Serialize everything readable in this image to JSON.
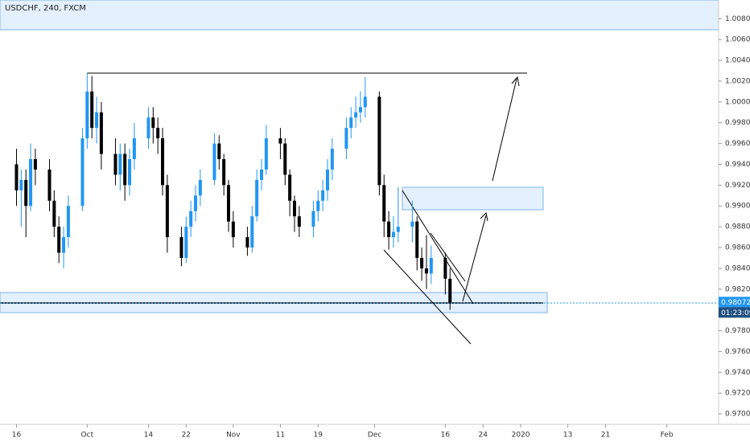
{
  "header": {
    "title": "USDCHF, 240, FXCM"
  },
  "chart_data": {
    "type": "candlestick",
    "up_color": "#2196f3",
    "down_color": "#000000",
    "x": [
      0,
      1,
      2,
      3,
      4,
      7,
      8,
      9,
      10,
      11,
      14,
      15,
      16,
      17,
      18,
      21,
      22,
      23,
      24,
      25,
      28,
      29,
      30,
      31,
      32,
      35,
      36,
      37,
      38,
      39,
      42,
      43,
      44,
      45,
      46,
      49,
      50,
      51,
      52,
      53,
      56,
      57,
      58,
      59,
      60,
      63,
      64,
      65,
      66,
      67,
      70,
      71,
      72,
      73,
      74,
      77,
      78,
      79,
      80,
      81,
      84,
      85,
      86,
      87,
      88,
      91,
      92
    ],
    "open": [
      0.994,
      0.9915,
      0.9925,
      0.99,
      0.9945,
      0.9935,
      0.9905,
      0.988,
      0.9855,
      0.987,
      0.99,
      0.9965,
      1.001,
      0.9975,
      0.999,
      0.995,
      0.993,
      0.995,
      0.992,
      0.9945,
      0.9965,
      0.9985,
      0.9975,
      0.9965,
      0.992,
      0.987,
      0.985,
      0.988,
      0.9895,
      0.991,
      0.9925,
      0.996,
      0.9945,
      0.992,
      0.9885,
      0.987,
      0.986,
      0.989,
      0.9925,
      0.9935,
      0.9965,
      0.996,
      0.993,
      0.9905,
      0.989,
      0.988,
      0.9895,
      0.9905,
      0.9915,
      0.9935,
      0.9955,
      0.9975,
      0.9985,
      0.999,
      0.9995,
      1.0005,
      0.992,
      0.9885,
      0.987,
      0.9875,
      0.988,
      0.9885,
      0.985,
      0.984,
      0.9835,
      0.985,
      0.983
    ],
    "high": [
      0.9955,
      0.9935,
      0.9935,
      0.996,
      0.9955,
      0.9945,
      0.9915,
      0.989,
      0.988,
      0.991,
      0.9975,
      1.0028,
      1.0025,
      1.0005,
      1.0,
      0.9965,
      0.996,
      0.996,
      0.9955,
      0.998,
      0.9995,
      0.9995,
      0.9985,
      0.9975,
      0.993,
      0.988,
      0.989,
      0.9905,
      0.992,
      0.9935,
      0.997,
      0.9968,
      0.995,
      0.9925,
      0.9895,
      0.988,
      0.99,
      0.9935,
      0.9945,
      0.9978,
      0.9975,
      0.9965,
      0.9935,
      0.991,
      0.99,
      0.9905,
      0.9915,
      0.9925,
      0.9945,
      0.9965,
      0.9985,
      0.9995,
      1.0005,
      1.001,
      1.0024,
      1.001,
      0.993,
      0.9895,
      0.989,
      0.9918,
      0.9905,
      0.989,
      0.986,
      0.9872,
      0.9862,
      0.9855,
      0.984
    ],
    "low": [
      0.99,
      0.988,
      0.987,
      0.9895,
      0.992,
      0.9895,
      0.987,
      0.9845,
      0.984,
      0.986,
      0.9895,
      0.9955,
      0.9965,
      0.996,
      0.9935,
      0.992,
      0.9915,
      0.9905,
      0.991,
      0.9935,
      0.9955,
      0.996,
      0.995,
      0.991,
      0.9855,
      0.9842,
      0.9845,
      0.987,
      0.9885,
      0.99,
      0.992,
      0.9935,
      0.991,
      0.9875,
      0.986,
      0.9852,
      0.9855,
      0.9885,
      0.9915,
      0.993,
      0.9945,
      0.992,
      0.989,
      0.9875,
      0.987,
      0.987,
      0.9885,
      0.9895,
      0.9905,
      0.9925,
      0.9945,
      0.9965,
      0.9975,
      0.998,
      0.9985,
      0.991,
      0.987,
      0.9858,
      0.986,
      0.9865,
      0.9865,
      0.9838,
      0.9828,
      0.982,
      0.9825,
      0.9815,
      0.98
    ],
    "close": [
      0.9915,
      0.9925,
      0.99,
      0.9945,
      0.9935,
      0.9905,
      0.988,
      0.9855,
      0.987,
      0.99,
      0.9965,
      1.001,
      0.9975,
      0.999,
      0.995,
      0.993,
      0.995,
      0.992,
      0.9945,
      0.9965,
      0.9985,
      0.9975,
      0.9965,
      0.992,
      0.987,
      0.985,
      0.988,
      0.9895,
      0.991,
      0.9925,
      0.996,
      0.9945,
      0.992,
      0.9885,
      0.987,
      0.986,
      0.989,
      0.9925,
      0.9935,
      0.9965,
      0.996,
      0.993,
      0.9905,
      0.989,
      0.988,
      0.9895,
      0.9905,
      0.9915,
      0.9935,
      0.9955,
      0.9975,
      0.9985,
      0.999,
      0.9995,
      1.0005,
      0.992,
      0.9885,
      0.987,
      0.9875,
      0.988,
      0.9885,
      0.985,
      0.984,
      0.9835,
      0.985,
      0.983,
      0.9807
    ],
    "xlim": [
      -3.5,
      149
    ],
    "xticks": [
      {
        "value": 0,
        "label": "16"
      },
      {
        "value": 15,
        "label": "Oct"
      },
      {
        "value": 28,
        "label": "14"
      },
      {
        "value": 36,
        "label": "22"
      },
      {
        "value": 46,
        "label": "Nov"
      },
      {
        "value": 56,
        "label": "11"
      },
      {
        "value": 64,
        "label": "19"
      },
      {
        "value": 76,
        "label": "Dec"
      },
      {
        "value": 91,
        "label": "16"
      },
      {
        "value": 99,
        "label": "24"
      },
      {
        "value": 107,
        "label": "2020"
      },
      {
        "value": 117,
        "label": "13"
      },
      {
        "value": 125,
        "label": "21"
      },
      {
        "value": 138,
        "label": "Feb"
      }
    ],
    "ylim": [
      0.969,
      1.0098
    ],
    "yticks": [
      {
        "value": 1.008,
        "label": "1.00800"
      },
      {
        "value": 1.006,
        "label": "1.00600"
      },
      {
        "value": 1.004,
        "label": "1.00400"
      },
      {
        "value": 1.002,
        "label": "1.00200"
      },
      {
        "value": 1.0,
        "label": "1.00000"
      },
      {
        "value": 0.998,
        "label": "0.99800"
      },
      {
        "value": 0.996,
        "label": "0.99600"
      },
      {
        "value": 0.994,
        "label": "0.99400"
      },
      {
        "value": 0.992,
        "label": "0.99200"
      },
      {
        "value": 0.99,
        "label": "0.99000"
      },
      {
        "value": 0.988,
        "label": "0.98800"
      },
      {
        "value": 0.986,
        "label": "0.98600"
      },
      {
        "value": 0.984,
        "label": "0.98400"
      },
      {
        "value": 0.982,
        "label": "0.98200"
      },
      {
        "value": 0.98,
        "label": "0.98000"
      },
      {
        "value": 0.978,
        "label": "0.97800"
      },
      {
        "value": 0.976,
        "label": "0.97600"
      },
      {
        "value": 0.974,
        "label": "0.97400"
      },
      {
        "value": 0.972,
        "label": "0.97200"
      },
      {
        "value": 0.97,
        "label": "0.97000"
      }
    ],
    "last_price": {
      "value": 0.98072,
      "label": "0.98072"
    },
    "countdown": "01:23:09"
  }
}
